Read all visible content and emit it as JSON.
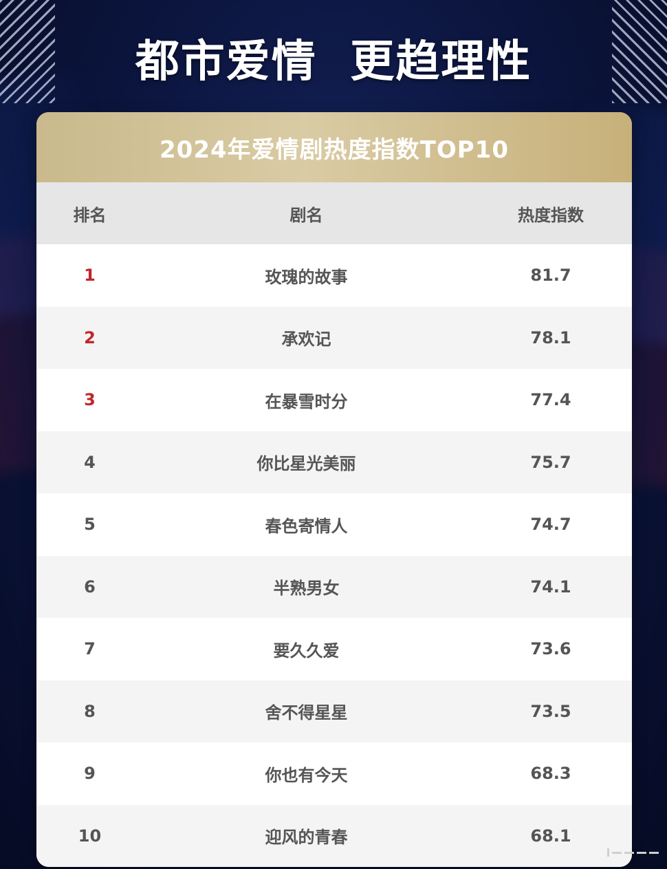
{
  "headline": "都市爱情  更趋理性",
  "table": {
    "title": "2024年爱情剧热度指数TOP10",
    "columns": {
      "rank": "排名",
      "name": "剧名",
      "score": "热度指数"
    },
    "highlight_color": "#c0262b",
    "rows": [
      {
        "rank": "1",
        "name": "玫瑰的故事",
        "score": "81.7"
      },
      {
        "rank": "2",
        "name": "承欢记",
        "score": "78.1"
      },
      {
        "rank": "3",
        "name": "在暴雪时分",
        "score": "77.4"
      },
      {
        "rank": "4",
        "name": "你比星光美丽",
        "score": "75.7"
      },
      {
        "rank": "5",
        "name": "春色寄情人",
        "score": "74.7"
      },
      {
        "rank": "6",
        "name": "半熟男女",
        "score": "74.1"
      },
      {
        "rank": "7",
        "name": "要久久爱",
        "score": "73.6"
      },
      {
        "rank": "8",
        "name": "舍不得星星",
        "score": "73.5"
      },
      {
        "rank": "9",
        "name": "你也有今天",
        "score": "68.3"
      },
      {
        "rank": "10",
        "name": "迎风的青春",
        "score": "68.1"
      }
    ]
  }
}
